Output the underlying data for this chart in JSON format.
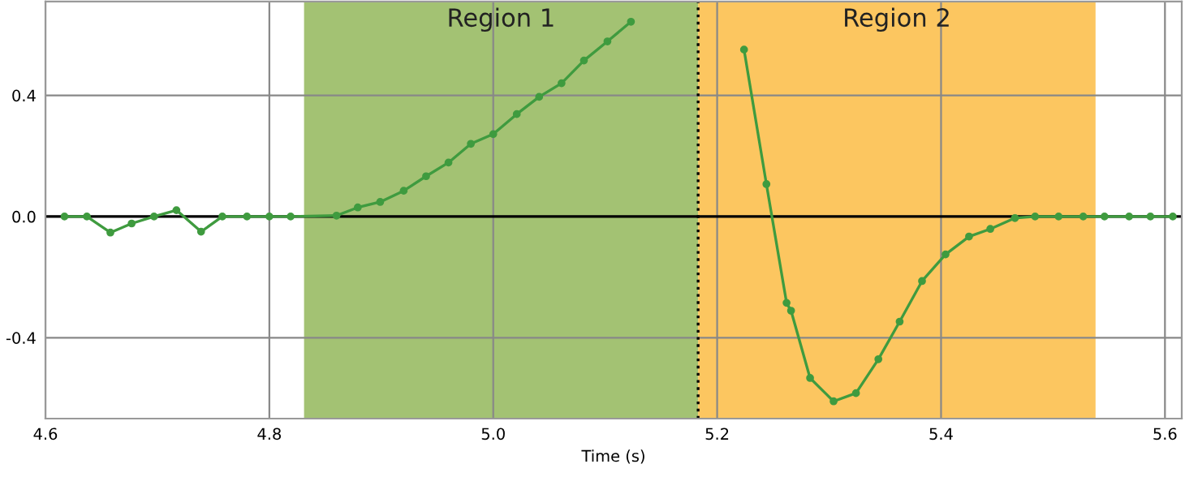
{
  "chart_data": {
    "type": "line",
    "xlabel": "Time (s)",
    "x": [
      4.617,
      4.637,
      4.658,
      4.677,
      4.697,
      4.717,
      4.739,
      4.758,
      4.78,
      4.8,
      4.819,
      4.86,
      4.879,
      4.899,
      4.92,
      4.94,
      4.96,
      4.98,
      5.0,
      5.021,
      5.041,
      5.061,
      5.081,
      5.102,
      5.123,
      null,
      5.224,
      5.244,
      5.262,
      5.266,
      5.283,
      5.304,
      5.324,
      5.344,
      5.363,
      5.383,
      5.404,
      5.425,
      5.444,
      5.466,
      5.484,
      5.505,
      5.527,
      5.546,
      5.568,
      5.587,
      5.607
    ],
    "series": [
      {
        "color": "#3f9b3f",
        "values": [
          0,
          0,
          -0.053,
          -0.023,
          0,
          0.021,
          -0.05,
          0,
          0,
          0,
          0,
          0.003,
          0.03,
          0.048,
          0.085,
          0.133,
          0.178,
          0.24,
          0.272,
          0.338,
          0.395,
          0.44,
          0.515,
          0.578,
          0.643,
          null,
          0.551,
          0.107,
          -0.285,
          -0.311,
          -0.533,
          -0.61,
          -0.583,
          -0.471,
          -0.347,
          -0.213,
          -0.125,
          -0.066,
          -0.041,
          -0.005,
          0,
          0,
          0,
          0,
          0,
          0,
          0
        ]
      }
    ],
    "xlim": [
      4.6,
      5.615
    ],
    "ylim": [
      -0.667,
      0.71
    ],
    "xticks": [
      4.6,
      4.8,
      {
        "value": 5,
        "label": "5.0"
      },
      5.2,
      5.4,
      5.6
    ],
    "yticks": [
      {
        "value": -0.4,
        "label": "-0.4"
      },
      {
        "value": 0,
        "label": "0.0"
      },
      0.4
    ],
    "bands": [
      {
        "axis": "x",
        "from": 4.831,
        "to": 5.183,
        "label": "Region 1",
        "color": "#a3c273"
      },
      {
        "axis": "x",
        "from": 5.183,
        "to": 5.538,
        "label": "Region 2",
        "color": "#fcc660"
      }
    ],
    "ref_lines": [
      {
        "axis": "y",
        "value": 0,
        "color": "#000000",
        "line_style": "solid"
      },
      {
        "axis": "x",
        "value": 5.183,
        "color": "#000000",
        "line_style": "dotted"
      }
    ],
    "grid": true,
    "marker": "circle",
    "line_style": "solid",
    "legend": false
  }
}
